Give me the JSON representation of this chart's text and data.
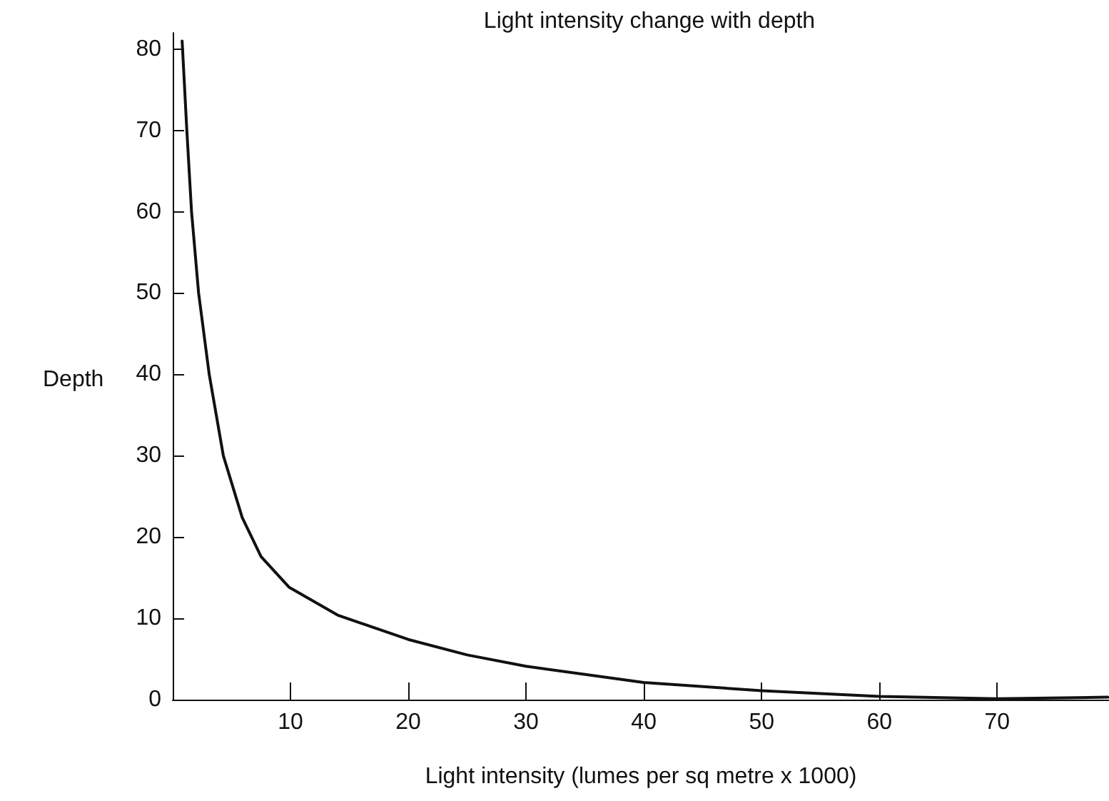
{
  "chart_data": {
    "type": "line",
    "title": "Light intensity change with depth",
    "xlabel": "Light intensity (lumes per sq metre x 1000)",
    "ylabel": "Depth",
    "x": [
      0.8,
      1.2,
      1.6,
      2.2,
      3.1,
      4.3,
      5.9,
      7.5,
      9.9,
      14,
      20,
      25,
      30,
      40,
      50,
      60,
      70,
      79.4
    ],
    "series": [
      {
        "color": "#111111",
        "values": [
          81,
          70,
          60,
          50,
          40,
          30,
          22.4,
          17.6,
          13.8,
          10.4,
          7.4,
          5.5,
          4.1,
          2.1,
          1.1,
          0.4,
          0.1,
          0.3
        ]
      }
    ],
    "xlim": [
      0,
      79.5
    ],
    "xticks": [
      10,
      20,
      30,
      40,
      50,
      60,
      70
    ],
    "ylim": [
      0,
      82
    ],
    "yticks": [
      0,
      10,
      20,
      30,
      40,
      50,
      60,
      70,
      80
    ],
    "grid": false,
    "marker": "none",
    "line_style": "solid"
  }
}
